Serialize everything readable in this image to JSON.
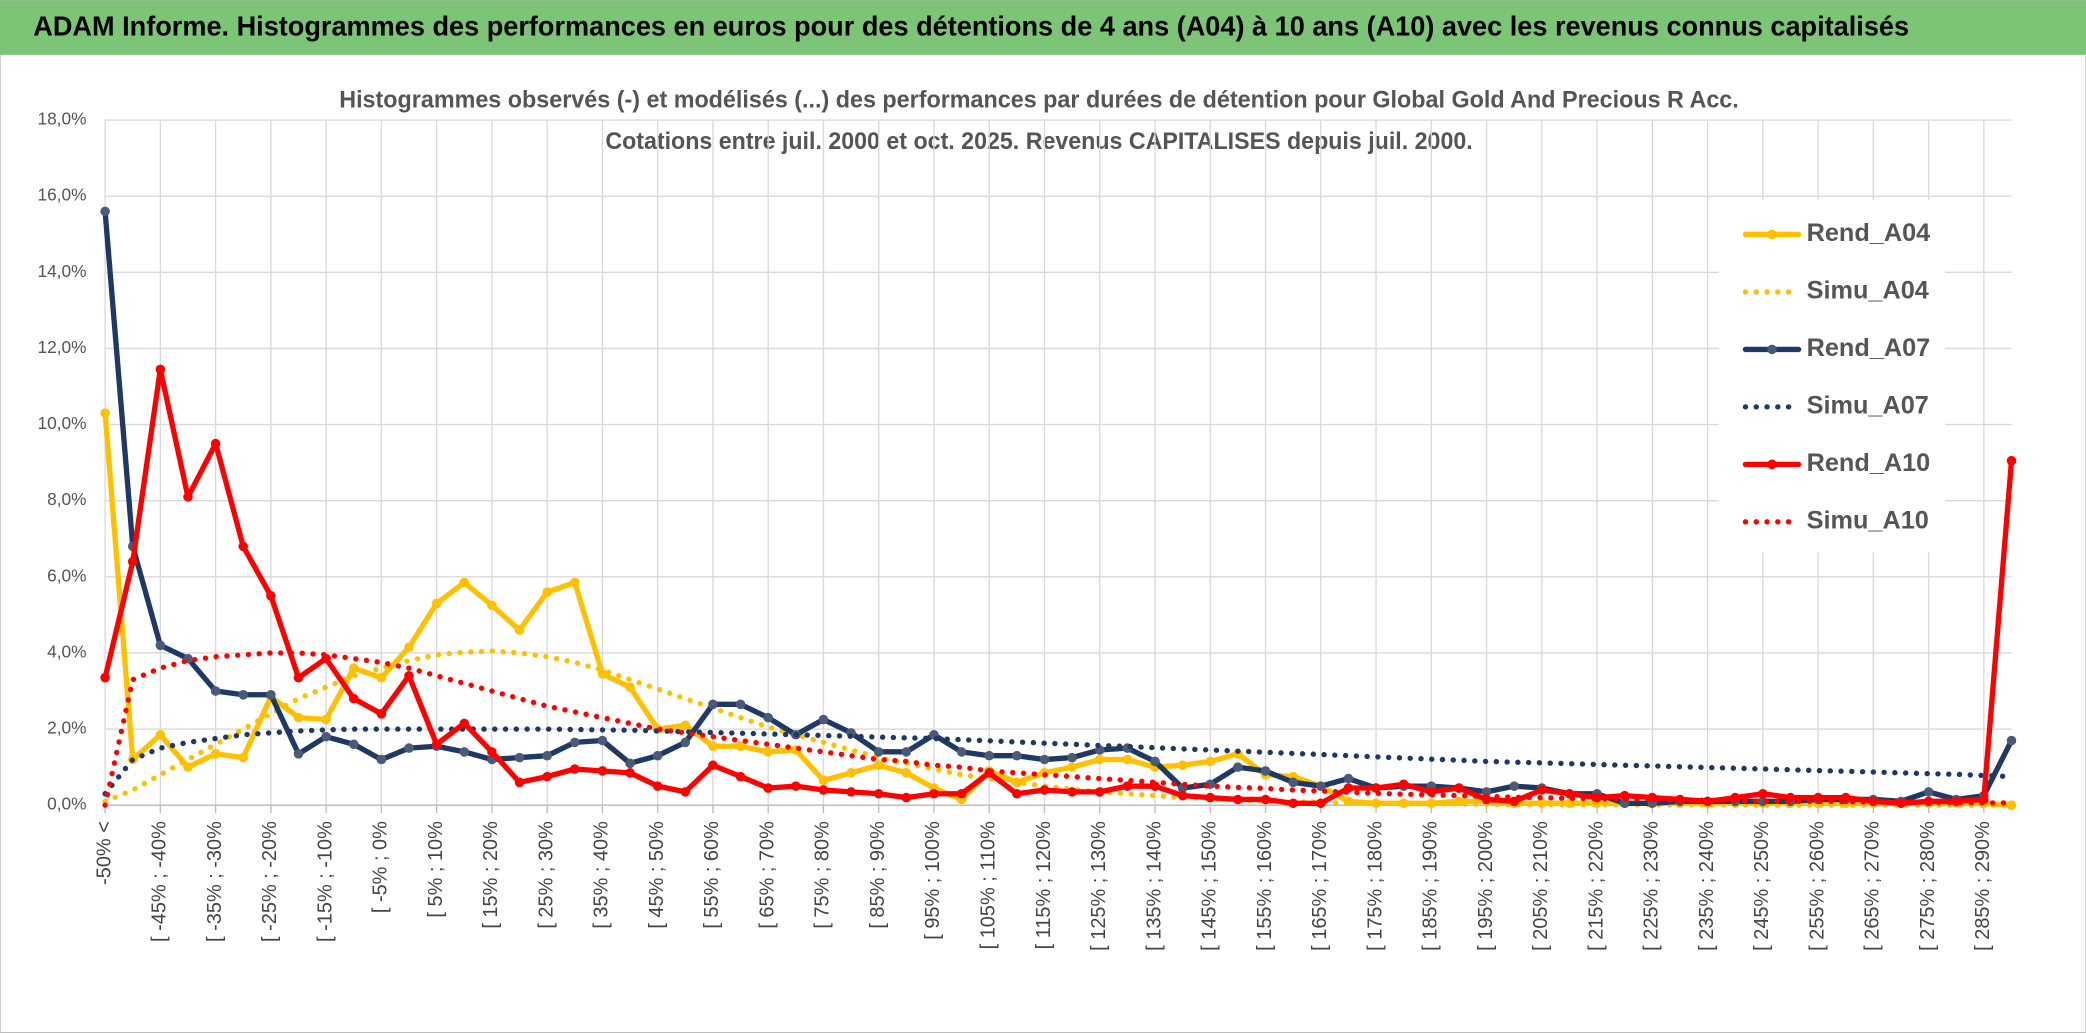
{
  "header": {
    "title": "ADAM Informe. Histogrammes des performances en euros pour des détentions de 4 ans (A04) à 10 ans (A10) avec les revenus connus capitalisés"
  },
  "chart_data": {
    "type": "line",
    "title": "Histogrammes observés (-) et modélisés (...) des performances par durées de détention pour Global Gold And Precious R Acc.",
    "subtitle": "Cotations entre juil. 2000 et oct. 2025. Revenus CAPITALISES depuis juil. 2000.",
    "categories": [
      "-50% <",
      null,
      "[ -45% ; -40%",
      null,
      "[ -35% ; -30%",
      null,
      "[ -25% ; -20%",
      null,
      "[ -15% ; -10%",
      null,
      "[ -5% ; 0%",
      null,
      "[ 5% ; 10%",
      null,
      "[ 15% ; 20%",
      null,
      "[ 25% ; 30%",
      null,
      "[ 35% ; 40%",
      null,
      "[ 45% ; 50%",
      null,
      "[ 55% ; 60%",
      null,
      "[ 65% ; 70%",
      null,
      "[ 75% ; 80%",
      null,
      "[ 85% ; 90%",
      null,
      "[ 95% ; 100%",
      null,
      "[ 105% ; 110%",
      null,
      "[ 115% ; 120%",
      null,
      "[ 125% ; 130%",
      null,
      "[ 135% ; 140%",
      null,
      "[ 145% ; 150%",
      null,
      "[ 155% ; 160%",
      null,
      "[ 165% ; 170%",
      null,
      "[ 175% ; 180%",
      null,
      "[ 185% ; 190%",
      null,
      "[ 195% ; 200%",
      null,
      "[ 205% ; 210%",
      null,
      "[ 215% ; 220%",
      null,
      "[ 225% ; 230%",
      null,
      "[ 235% ; 240%",
      null,
      "[ 245% ; 250%",
      null,
      "[ 255% ; 260%",
      null,
      "[ 265% ; 270%",
      null,
      "[ 275% ; 280%",
      null,
      "[ 285% ; 290%",
      null
    ],
    "series": [
      {
        "name": "Rend_A04",
        "color": "#FFC000",
        "style": "solid",
        "markers": true,
        "values": [
          10.3,
          1.2,
          1.85,
          1.0,
          1.35,
          1.25,
          2.85,
          2.3,
          2.25,
          3.6,
          3.35,
          4.15,
          5.3,
          5.85,
          5.25,
          4.6,
          5.6,
          5.85,
          3.45,
          3.1,
          2.0,
          2.1,
          1.55,
          1.55,
          1.4,
          1.45,
          0.65,
          0.85,
          1.05,
          0.85,
          0.45,
          0.15,
          0.9,
          0.6,
          0.85,
          1.0,
          1.2,
          1.2,
          1.0,
          1.05,
          1.15,
          1.35,
          0.8,
          0.75,
          0.5,
          0.1,
          0.05,
          0.05,
          0.05,
          0.1,
          0.1,
          0.05,
          0.05,
          0.05,
          0.05,
          0.05,
          0.05,
          0.05,
          0.05,
          0.05,
          0.05,
          0.05,
          0.05,
          0.05,
          0.05,
          0.05,
          0.05,
          0.05,
          0.05,
          0.0
        ]
      },
      {
        "name": "Simu_A04",
        "color": "#FFC000",
        "style": "dotted",
        "markers": false,
        "values": [
          0.1,
          0.4,
          0.8,
          1.2,
          1.6,
          2.0,
          2.4,
          2.8,
          3.1,
          3.4,
          3.6,
          3.8,
          3.95,
          4.02,
          4.05,
          4.0,
          3.9,
          3.75,
          3.55,
          3.3,
          3.05,
          2.8,
          2.55,
          2.3,
          2.05,
          1.85,
          1.65,
          1.45,
          1.25,
          1.1,
          0.95,
          0.8,
          0.7,
          0.6,
          0.5,
          0.42,
          0.35,
          0.3,
          0.25,
          0.2,
          0.17,
          0.14,
          0.11,
          0.09,
          0.07,
          0.06,
          0.05,
          0.04,
          0.03,
          0.03,
          0.02,
          0.02,
          0.02,
          0.01,
          0.01,
          0.01,
          0.01,
          0.01,
          0.01,
          0.01,
          0.0,
          0.0,
          0.0,
          0.0,
          0.0,
          0.0,
          0.0,
          0.0,
          0.0,
          0.0
        ]
      },
      {
        "name": "Rend_A07",
        "color": "#1F3864",
        "marker_color": "#4A5A78",
        "style": "solid",
        "markers": true,
        "values": [
          15.6,
          6.8,
          4.2,
          3.85,
          3.0,
          2.9,
          2.9,
          1.35,
          1.8,
          1.6,
          1.2,
          1.5,
          1.55,
          1.4,
          1.2,
          1.25,
          1.3,
          1.65,
          1.7,
          1.1,
          1.3,
          1.65,
          2.65,
          2.65,
          2.3,
          1.85,
          2.25,
          1.9,
          1.4,
          1.4,
          1.85,
          1.4,
          1.3,
          1.3,
          1.2,
          1.25,
          1.45,
          1.5,
          1.15,
          0.45,
          0.55,
          1.0,
          0.9,
          0.6,
          0.5,
          0.7,
          0.45,
          0.5,
          0.5,
          0.45,
          0.35,
          0.5,
          0.45,
          0.3,
          0.3,
          0.05,
          0.05,
          0.1,
          0.1,
          0.1,
          0.1,
          0.1,
          0.15,
          0.15,
          0.15,
          0.1,
          0.35,
          0.15,
          0.25,
          1.7
        ]
      },
      {
        "name": "Simu_A07",
        "color": "#1F3864",
        "style": "dotted",
        "markers": false,
        "values": [
          0.3,
          1.2,
          1.5,
          1.65,
          1.75,
          1.85,
          1.9,
          1.95,
          1.98,
          2.0,
          2.0,
          2.0,
          2.0,
          2.0,
          2.0,
          2.0,
          2.0,
          1.99,
          1.98,
          1.97,
          1.95,
          1.93,
          1.91,
          1.89,
          1.87,
          1.85,
          1.83,
          1.81,
          1.79,
          1.77,
          1.75,
          1.72,
          1.69,
          1.66,
          1.63,
          1.6,
          1.57,
          1.54,
          1.51,
          1.48,
          1.45,
          1.42,
          1.39,
          1.36,
          1.33,
          1.3,
          1.27,
          1.24,
          1.21,
          1.18,
          1.15,
          1.13,
          1.11,
          1.09,
          1.07,
          1.05,
          1.03,
          1.01,
          0.99,
          0.97,
          0.95,
          0.93,
          0.91,
          0.89,
          0.87,
          0.85,
          0.83,
          0.81,
          0.78,
          0.75
        ]
      },
      {
        "name": "Rend_A10",
        "color": "#FF0000",
        "style": "solid",
        "markers": true,
        "values": [
          3.35,
          6.4,
          11.45,
          8.1,
          9.5,
          6.8,
          5.5,
          3.35,
          3.85,
          2.8,
          2.4,
          3.4,
          1.6,
          2.15,
          1.4,
          0.6,
          0.75,
          0.95,
          0.9,
          0.85,
          0.5,
          0.35,
          1.05,
          0.75,
          0.45,
          0.5,
          0.4,
          0.35,
          0.3,
          0.2,
          0.3,
          0.3,
          0.85,
          0.3,
          0.4,
          0.35,
          0.35,
          0.5,
          0.5,
          0.25,
          0.2,
          0.15,
          0.15,
          0.05,
          0.05,
          0.45,
          0.45,
          0.55,
          0.35,
          0.45,
          0.15,
          0.1,
          0.4,
          0.3,
          0.2,
          0.25,
          0.2,
          0.15,
          0.1,
          0.2,
          0.3,
          0.2,
          0.2,
          0.2,
          0.1,
          0.05,
          0.1,
          0.1,
          0.15,
          9.05
        ]
      },
      {
        "name": "Simu_A10",
        "color": "#FF0000",
        "style": "dotted",
        "markers": false,
        "values": [
          0.0,
          3.3,
          3.6,
          3.8,
          3.9,
          3.95,
          4.0,
          4.0,
          3.95,
          3.85,
          3.75,
          3.6,
          3.4,
          3.2,
          3.0,
          2.8,
          2.6,
          2.45,
          2.3,
          2.15,
          2.0,
          1.9,
          1.8,
          1.7,
          1.6,
          1.5,
          1.4,
          1.3,
          1.2,
          1.15,
          1.05,
          1.0,
          0.9,
          0.85,
          0.8,
          0.75,
          0.7,
          0.65,
          0.6,
          0.55,
          0.5,
          0.47,
          0.44,
          0.4,
          0.37,
          0.34,
          0.31,
          0.29,
          0.27,
          0.25,
          0.23,
          0.21,
          0.2,
          0.18,
          0.17,
          0.16,
          0.15,
          0.14,
          0.13,
          0.12,
          0.11,
          0.1,
          0.1,
          0.09,
          0.08,
          0.08,
          0.07,
          0.07,
          0.06,
          0.06
        ]
      }
    ],
    "ylim": [
      0,
      18
    ],
    "yticks": [
      {
        "value": 0,
        "label": "0,0%"
      },
      {
        "value": 2,
        "label": "2,0%"
      },
      {
        "value": 4,
        "label": "4,0%"
      },
      {
        "value": 6,
        "label": "6,0%"
      },
      {
        "value": 8,
        "label": "8,0%"
      },
      {
        "value": 10,
        "label": "10,0%"
      },
      {
        "value": 12,
        "label": "12,0%"
      },
      {
        "value": 14,
        "label": "14,0%"
      },
      {
        "value": 16,
        "label": "16,0%"
      },
      {
        "value": 18,
        "label": "18,0%"
      }
    ],
    "grid": true,
    "legend": "right"
  }
}
